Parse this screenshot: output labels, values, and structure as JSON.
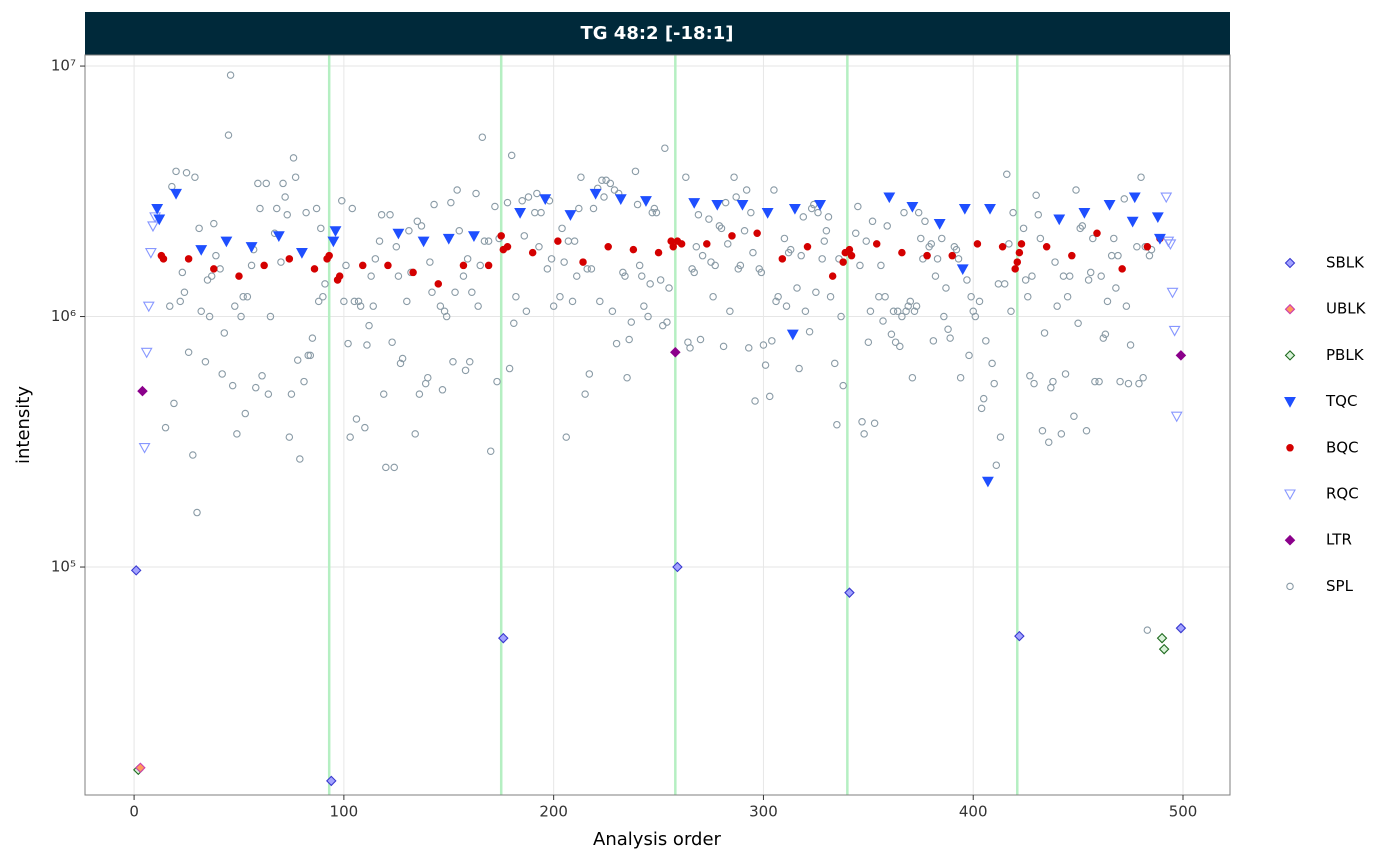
{
  "chart_data": {
    "type": "scatter",
    "title": "TG 48:2 [-18:1]",
    "x_label": "Analysis order",
    "y_label": "intensity",
    "xlim": [
      -23.4,
      522.4
    ],
    "xticks": [
      0,
      100,
      200,
      300,
      400,
      500
    ],
    "ylim": [
      12300,
      11070000
    ],
    "log_y": true,
    "yticks": [
      {
        "value": 100000,
        "label": "10⁵"
      },
      {
        "value": 1000000,
        "label": "10⁶"
      },
      {
        "value": 10000000,
        "label": "10⁷"
      }
    ],
    "grid": true,
    "legend": "right",
    "vlines": [
      93,
      175,
      258,
      340,
      421
    ],
    "vline_color": "#b5efc2",
    "series": [
      {
        "name": "SBLK",
        "shape": "diamond",
        "fill": "#a3a3ff",
        "color": "#3a3ad0",
        "x": [
          1,
          94,
          176,
          259,
          341,
          422,
          499
        ],
        "values": [
          97000,
          14000,
          52000,
          100000,
          79000,
          53000,
          57000
        ]
      },
      {
        "name": "UBLK",
        "shape": "diamond",
        "fill": "#ff9a5c",
        "color": "#cc3fae",
        "x": [
          3
        ],
        "values": [
          15800
        ]
      },
      {
        "name": "PBLK",
        "shape": "diamond",
        "fill": "#d9f2d9",
        "color": "#1f6a1f",
        "x": [
          2,
          490,
          491
        ],
        "values": [
          15500,
          52000,
          47000
        ]
      },
      {
        "name": "TQC",
        "shape": "triangle-down",
        "fill": "#1f4fff",
        "color": "#1f4fff",
        "x": [
          11,
          12,
          20,
          32,
          44,
          56,
          69,
          80,
          95,
          96,
          126,
          138,
          150,
          162,
          184,
          196,
          208,
          220,
          232,
          244,
          267,
          278,
          290,
          302,
          314,
          315,
          327,
          360,
          371,
          384,
          395,
          396,
          407,
          408,
          441,
          453,
          465,
          476,
          477,
          488,
          489
        ],
        "values": [
          2700000,
          2450000,
          3100000,
          1850000,
          2000000,
          1900000,
          2100000,
          1800000,
          2000000,
          2200000,
          2150000,
          2000000,
          2050000,
          2100000,
          2600000,
          2950000,
          2550000,
          3100000,
          2950000,
          2900000,
          2850000,
          2800000,
          2800000,
          2600000,
          850000,
          2700000,
          2800000,
          3000000,
          2750000,
          2350000,
          1550000,
          2700000,
          220000,
          2700000,
          2450000,
          2600000,
          2800000,
          2400000,
          3000000,
          2500000,
          2050000
        ]
      },
      {
        "name": "BQC",
        "shape": "circle",
        "fill": "#d40000",
        "color": "#d40000",
        "x": [
          13,
          14,
          26,
          38,
          50,
          62,
          74,
          86,
          92,
          93,
          97,
          98,
          109,
          121,
          133,
          145,
          157,
          169,
          175,
          176,
          178,
          190,
          202,
          214,
          226,
          238,
          250,
          256,
          257,
          259,
          261,
          273,
          285,
          297,
          309,
          321,
          333,
          338,
          339,
          341,
          342,
          354,
          366,
          378,
          390,
          402,
          414,
          420,
          421,
          422,
          423,
          435,
          447,
          459,
          471,
          483,
          489
        ],
        "values": [
          1750000,
          1700000,
          1700000,
          1550000,
          1450000,
          1600000,
          1700000,
          1550000,
          1700000,
          1750000,
          1400000,
          1450000,
          1600000,
          1600000,
          1500000,
          1350000,
          1600000,
          1600000,
          2100000,
          1850000,
          1900000,
          1800000,
          2000000,
          1650000,
          1900000,
          1850000,
          1800000,
          2000000,
          1900000,
          2000000,
          1950000,
          1950000,
          2100000,
          2150000,
          1700000,
          1900000,
          1450000,
          1650000,
          1800000,
          1850000,
          1750000,
          1950000,
          1800000,
          1750000,
          1750000,
          1950000,
          1900000,
          1550000,
          1650000,
          1800000,
          1950000,
          1900000,
          1750000,
          2150000,
          1550000,
          1900000,
          2050000
        ]
      },
      {
        "name": "RQC",
        "shape": "triangle-down-open",
        "fill": "none",
        "color": "#8797ff",
        "x": [
          5,
          6,
          7,
          8,
          9,
          10,
          492,
          493,
          494,
          495,
          496,
          497
        ],
        "values": [
          300000,
          720000,
          1100000,
          1800000,
          2300000,
          2500000,
          3000000,
          2000000,
          1950000,
          1250000,
          880000,
          400000
        ]
      },
      {
        "name": "LTR",
        "shape": "diamond",
        "fill": "#8b008b",
        "color": "#8b008b",
        "x": [
          4,
          258,
          499
        ],
        "values": [
          504000,
          720000,
          700000
        ]
      },
      {
        "name": "SPL",
        "shape": "circle-open",
        "fill": "none",
        "color": "#8a9ba6",
        "x": [
          15,
          17,
          18,
          19,
          20,
          22,
          23,
          24,
          25,
          26,
          28,
          29,
          30,
          31,
          32,
          34,
          35,
          36,
          37,
          38,
          39,
          41,
          42,
          43,
          45,
          46,
          47,
          48,
          49,
          51,
          52,
          53,
          54,
          56,
          57,
          58,
          59,
          60,
          61,
          63,
          64,
          65,
          67,
          68,
          70,
          71,
          72,
          73,
          74,
          75,
          76,
          77,
          78,
          79,
          81,
          82,
          83,
          84,
          85,
          87,
          88,
          89,
          90,
          91,
          99,
          100,
          101,
          102,
          103,
          104,
          105,
          106,
          107,
          108,
          110,
          111,
          112,
          113,
          114,
          115,
          117,
          118,
          119,
          120,
          122,
          123,
          124,
          125,
          126,
          127,
          128,
          130,
          131,
          132,
          134,
          135,
          136,
          137,
          139,
          140,
          141,
          142,
          143,
          146,
          147,
          148,
          149,
          151,
          152,
          153,
          154,
          155,
          157,
          158,
          159,
          160,
          161,
          163,
          164,
          165,
          166,
          167,
          169,
          170,
          172,
          173,
          174,
          178,
          179,
          180,
          181,
          182,
          185,
          186,
          187,
          188,
          191,
          192,
          193,
          194,
          197,
          198,
          199,
          200,
          203,
          204,
          205,
          206,
          207,
          209,
          210,
          211,
          212,
          213,
          215,
          216,
          217,
          218,
          219,
          221,
          222,
          223,
          224,
          225,
          227,
          228,
          229,
          230,
          231,
          233,
          234,
          235,
          236,
          237,
          239,
          240,
          241,
          242,
          243,
          245,
          246,
          247,
          248,
          249,
          251,
          252,
          253,
          254,
          255,
          263,
          264,
          265,
          266,
          267,
          268,
          269,
          270,
          271,
          274,
          275,
          276,
          277,
          279,
          280,
          281,
          282,
          283,
          284,
          286,
          287,
          288,
          289,
          291,
          292,
          293,
          294,
          295,
          296,
          298,
          299,
          300,
          301,
          303,
          304,
          305,
          306,
          307,
          310,
          311,
          312,
          313,
          316,
          317,
          318,
          319,
          320,
          322,
          323,
          324,
          325,
          326,
          328,
          329,
          330,
          331,
          332,
          334,
          335,
          336,
          337,
          338,
          344,
          345,
          346,
          347,
          348,
          349,
          350,
          351,
          352,
          353,
          355,
          356,
          357,
          358,
          359,
          361,
          362,
          363,
          364,
          365,
          366,
          367,
          368,
          369,
          370,
          371,
          372,
          373,
          374,
          375,
          376,
          377,
          378,
          379,
          380,
          381,
          382,
          383,
          385,
          386,
          387,
          388,
          389,
          391,
          392,
          393,
          394,
          397,
          398,
          399,
          400,
          401,
          403,
          404,
          405,
          406,
          409,
          410,
          411,
          412,
          413,
          415,
          416,
          417,
          418,
          419,
          424,
          425,
          426,
          427,
          428,
          429,
          430,
          431,
          432,
          433,
          434,
          436,
          437,
          438,
          439,
          440,
          442,
          443,
          444,
          445,
          446,
          448,
          449,
          450,
          451,
          452,
          454,
          455,
          456,
          457,
          458,
          460,
          461,
          462,
          463,
          464,
          466,
          467,
          468,
          469,
          470,
          472,
          473,
          474,
          475,
          478,
          479,
          480,
          481,
          482,
          483,
          484,
          485
        ],
        "values": [
          360000,
          1100000,
          3300000,
          450000,
          3800000,
          1150000,
          1500000,
          1250000,
          3750000,
          720000,
          280000,
          3600000,
          165000,
          2250000,
          1050000,
          660000,
          1400000,
          1000000,
          1450000,
          2350000,
          1750000,
          1550000,
          590000,
          860000,
          5300000,
          9200000,
          530000,
          1100000,
          340000,
          1000000,
          1200000,
          410000,
          1200000,
          1600000,
          1850000,
          520000,
          3400000,
          2700000,
          580000,
          3400000,
          490000,
          1000000,
          2150000,
          2700000,
          1650000,
          3400000,
          3000000,
          2550000,
          330000,
          490000,
          4300000,
          3600000,
          670000,
          270000,
          550000,
          2600000,
          700000,
          700000,
          820000,
          2700000,
          1150000,
          2250000,
          1200000,
          1350000,
          2900000,
          1150000,
          1600000,
          780000,
          330000,
          2700000,
          1150000,
          390000,
          1150000,
          1100000,
          360000,
          770000,
          920000,
          1450000,
          1100000,
          1700000,
          2000000,
          2550000,
          490000,
          250000,
          2550000,
          790000,
          250000,
          1900000,
          1450000,
          650000,
          680000,
          1150000,
          2200000,
          1500000,
          340000,
          2400000,
          490000,
          2300000,
          540000,
          570000,
          1650000,
          1250000,
          2800000,
          1100000,
          510000,
          1050000,
          1000000,
          2850000,
          660000,
          1250000,
          3200000,
          2200000,
          1450000,
          610000,
          1700000,
          660000,
          1250000,
          3100000,
          1100000,
          1600000,
          5200000,
          2000000,
          2000000,
          290000,
          2750000,
          550000,
          2050000,
          2850000,
          620000,
          4400000,
          940000,
          1200000,
          2900000,
          2100000,
          1050000,
          3000000,
          2600000,
          3100000,
          1900000,
          2600000,
          1550000,
          2900000,
          1700000,
          1100000,
          1200000,
          2250000,
          1650000,
          330000,
          2000000,
          1150000,
          2000000,
          1450000,
          2700000,
          3600000,
          490000,
          1550000,
          590000,
          1550000,
          2700000,
          3250000,
          1150000,
          3500000,
          3000000,
          3500000,
          3400000,
          1050000,
          3200000,
          780000,
          3100000,
          1500000,
          1450000,
          570000,
          810000,
          950000,
          3800000,
          2800000,
          1600000,
          1450000,
          1100000,
          1000000,
          1350000,
          2600000,
          2700000,
          2600000,
          1400000,
          920000,
          4700000,
          950000,
          1300000,
          3600000,
          790000,
          750000,
          1550000,
          1500000,
          1900000,
          2550000,
          810000,
          1750000,
          2450000,
          1650000,
          1200000,
          1600000,
          2300000,
          2250000,
          760000,
          2850000,
          1950000,
          1050000,
          3600000,
          3000000,
          1550000,
          1600000,
          2200000,
          3200000,
          750000,
          2600000,
          1800000,
          460000,
          1550000,
          1500000,
          770000,
          640000,
          480000,
          800000,
          3200000,
          1150000,
          1200000,
          2050000,
          1100000,
          1800000,
          1850000,
          1300000,
          620000,
          1750000,
          2500000,
          1050000,
          870000,
          2700000,
          2800000,
          1250000,
          2600000,
          1700000,
          2000000,
          2200000,
          2500000,
          1200000,
          650000,
          370000,
          1700000,
          1000000,
          530000,
          2150000,
          2750000,
          1600000,
          380000,
          340000,
          2000000,
          790000,
          1050000,
          2400000,
          375000,
          1200000,
          1600000,
          960000,
          1200000,
          2300000,
          850000,
          1050000,
          790000,
          1050000,
          760000,
          1000000,
          2600000,
          1050000,
          1100000,
          1150000,
          570000,
          1050000,
          1100000,
          2600000,
          2050000,
          1700000,
          2400000,
          1750000,
          1900000,
          1950000,
          800000,
          1450000,
          1700000,
          2050000,
          1000000,
          1300000,
          890000,
          820000,
          1900000,
          1850000,
          1700000,
          570000,
          1400000,
          700000,
          1200000,
          1050000,
          1000000,
          1150000,
          430000,
          470000,
          800000,
          650000,
          540000,
          255000,
          1350000,
          330000,
          1350000,
          3700000,
          1950000,
          1050000,
          2600000,
          2250000,
          1400000,
          1200000,
          580000,
          1450000,
          540000,
          3050000,
          2550000,
          2050000,
          350000,
          860000,
          315000,
          520000,
          550000,
          1650000,
          1100000,
          340000,
          1450000,
          590000,
          1200000,
          1450000,
          400000,
          3200000,
          940000,
          2250000,
          2300000,
          350000,
          1400000,
          1500000,
          2050000,
          550000,
          550000,
          1450000,
          820000,
          850000,
          1150000,
          1750000,
          2050000,
          1300000,
          1750000,
          550000,
          2950000,
          1100000,
          540000,
          770000,
          1900000,
          540000,
          3600000,
          570000,
          1900000,
          56000,
          1750000,
          1850000
        ]
      }
    ]
  }
}
